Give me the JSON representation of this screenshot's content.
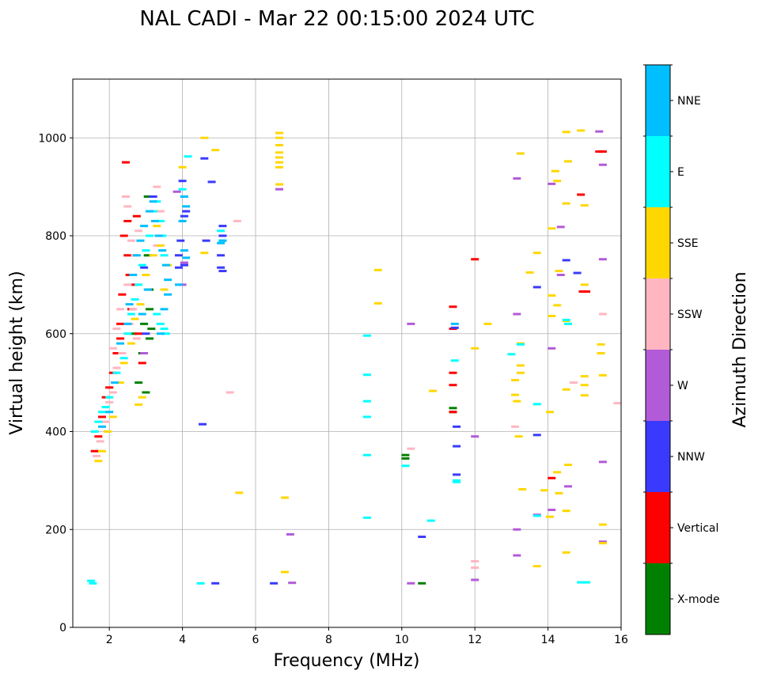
{
  "chart_data": {
    "type": "scatter",
    "title": "NAL CADI - Mar 22 00:15:00 2024 UTC",
    "xlabel": "Frequency (MHz)",
    "ylabel": "Virtual height (km)",
    "xlim": [
      1,
      16
    ],
    "ylim": [
      0,
      1120
    ],
    "xticks": [
      2,
      4,
      6,
      8,
      10,
      12,
      14,
      16
    ],
    "yticks": [
      0,
      200,
      400,
      600,
      800,
      1000
    ],
    "grid": true,
    "colorbar": {
      "label": "Azimuth Direction",
      "categories": [
        {
          "name": "X-mode",
          "color": "#008000"
        },
        {
          "name": "Vertical",
          "color": "#ff0000"
        },
        {
          "name": "NNW",
          "color": "#3a3aff"
        },
        {
          "name": "W",
          "color": "#b25bd8"
        },
        {
          "name": "SSW",
          "color": "#ffb6c1"
        },
        {
          "name": "SSE",
          "color": "#ffd700"
        },
        {
          "name": "E",
          "color": "#00ffff"
        },
        {
          "name": "NNE",
          "color": "#00bfff"
        }
      ]
    },
    "series": [
      {
        "name": "X-mode",
        "points": [
          [
            10.1,
            345
          ],
          [
            10.1,
            352
          ],
          [
            10.55,
            90
          ],
          [
            11.4,
            440
          ],
          [
            11.4,
            448
          ],
          [
            3.1,
            650
          ],
          [
            3.1,
            690
          ],
          [
            3.1,
            590
          ],
          [
            3.05,
            760
          ],
          [
            2.9,
            560
          ],
          [
            2.95,
            620
          ],
          [
            3.05,
            880
          ],
          [
            3.15,
            610
          ],
          [
            3.0,
            480
          ],
          [
            2.65,
            600
          ],
          [
            2.8,
            500
          ]
        ]
      },
      {
        "name": "Vertical",
        "points": [
          [
            2.45,
            950
          ],
          [
            2.4,
            800
          ],
          [
            2.5,
            760
          ],
          [
            2.55,
            720
          ],
          [
            2.35,
            680
          ],
          [
            2.3,
            620
          ],
          [
            2.2,
            560
          ],
          [
            2.1,
            520
          ],
          [
            2.0,
            490
          ],
          [
            1.9,
            470
          ],
          [
            1.8,
            430
          ],
          [
            1.7,
            390
          ],
          [
            1.6,
            360
          ],
          [
            2.6,
            650
          ],
          [
            2.7,
            700
          ],
          [
            2.75,
            840
          ],
          [
            2.8,
            600
          ],
          [
            11.4,
            655
          ],
          [
            11.4,
            610
          ],
          [
            11.4,
            520
          ],
          [
            11.4,
            495
          ],
          [
            11.4,
            440
          ],
          [
            12.0,
            752
          ],
          [
            14.9,
            884
          ],
          [
            15.4,
            972
          ],
          [
            15.5,
            972
          ],
          [
            14.95,
            686
          ],
          [
            15.05,
            686
          ],
          [
            14.1,
            305
          ],
          [
            2.3,
            590
          ],
          [
            2.5,
            830
          ],
          [
            2.9,
            540
          ]
        ]
      },
      {
        "name": "NNW",
        "points": [
          [
            4.0,
            912
          ],
          [
            4.05,
            880
          ],
          [
            4.1,
            850
          ],
          [
            4.05,
            840
          ],
          [
            3.95,
            790
          ],
          [
            3.9,
            760
          ],
          [
            3.9,
            735
          ],
          [
            4.05,
            740
          ],
          [
            4.6,
            958
          ],
          [
            4.65,
            790
          ],
          [
            4.55,
            415
          ],
          [
            5.1,
            820
          ],
          [
            5.1,
            800
          ],
          [
            5.05,
            760
          ],
          [
            5.05,
            735
          ],
          [
            5.1,
            728
          ],
          [
            4.8,
            910
          ],
          [
            6.5,
            90
          ],
          [
            4.9,
            90
          ],
          [
            10.55,
            185
          ],
          [
            11.45,
            612
          ],
          [
            11.5,
            410
          ],
          [
            11.5,
            370
          ],
          [
            11.5,
            312
          ],
          [
            13.7,
            695
          ],
          [
            13.7,
            393
          ],
          [
            14.5,
            750
          ],
          [
            14.8,
            724
          ],
          [
            3.2,
            880
          ],
          [
            3.0,
            600
          ],
          [
            2.95,
            735
          ]
        ]
      },
      {
        "name": "W",
        "points": [
          [
            6.65,
            895
          ],
          [
            6.95,
            190
          ],
          [
            7.0,
            91
          ],
          [
            10.25,
            620
          ],
          [
            10.25,
            90
          ],
          [
            12.0,
            390
          ],
          [
            12.0,
            97
          ],
          [
            13.15,
            917
          ],
          [
            13.15,
            640
          ],
          [
            13.15,
            200
          ],
          [
            13.15,
            147
          ],
          [
            14.1,
            906
          ],
          [
            14.1,
            570
          ],
          [
            14.35,
            818
          ],
          [
            14.35,
            720
          ],
          [
            14.55,
            288
          ],
          [
            14.1,
            240
          ],
          [
            15.4,
            1013
          ],
          [
            15.5,
            945
          ],
          [
            15.5,
            752
          ],
          [
            15.5,
            338
          ],
          [
            15.5,
            175
          ],
          [
            13.7,
            230
          ],
          [
            4.0,
            700
          ],
          [
            4.05,
            745
          ],
          [
            3.85,
            890
          ],
          [
            2.95,
            560
          ]
        ]
      },
      {
        "name": "SSW",
        "points": [
          [
            2.45,
            880
          ],
          [
            2.5,
            860
          ],
          [
            2.6,
            790
          ],
          [
            2.7,
            760
          ],
          [
            2.5,
            700
          ],
          [
            2.3,
            650
          ],
          [
            2.2,
            610
          ],
          [
            2.1,
            570
          ],
          [
            2.2,
            530
          ],
          [
            2.1,
            480
          ],
          [
            2.0,
            460
          ],
          [
            1.9,
            420
          ],
          [
            1.75,
            380
          ],
          [
            1.65,
            350
          ],
          [
            2.8,
            810
          ],
          [
            3.3,
            900
          ],
          [
            3.4,
            850
          ],
          [
            3.3,
            780
          ],
          [
            2.65,
            650
          ],
          [
            2.75,
            590
          ],
          [
            5.5,
            830
          ],
          [
            5.3,
            480
          ],
          [
            10.25,
            365
          ],
          [
            12.0,
            135
          ],
          [
            12.0,
            122
          ],
          [
            13.1,
            410
          ],
          [
            15.9,
            458
          ],
          [
            15.5,
            640
          ],
          [
            14.7,
            500
          ],
          [
            2.35,
            560
          ],
          [
            2.55,
            620
          ]
        ]
      },
      {
        "name": "SSE",
        "points": [
          [
            6.65,
            1010
          ],
          [
            6.65,
            1000
          ],
          [
            6.65,
            985
          ],
          [
            6.65,
            970
          ],
          [
            6.65,
            960
          ],
          [
            6.65,
            950
          ],
          [
            6.65,
            940
          ],
          [
            6.65,
            905
          ],
          [
            4.0,
            940
          ],
          [
            4.6,
            1000
          ],
          [
            4.9,
            975
          ],
          [
            4.6,
            765
          ],
          [
            5.55,
            275
          ],
          [
            6.8,
            265
          ],
          [
            6.8,
            113
          ],
          [
            9.35,
            730
          ],
          [
            9.35,
            662
          ],
          [
            10.85,
            483
          ],
          [
            12.0,
            570
          ],
          [
            12.35,
            620
          ],
          [
            13.25,
            968
          ],
          [
            13.25,
            580
          ],
          [
            13.25,
            535
          ],
          [
            13.25,
            520
          ],
          [
            13.1,
            505
          ],
          [
            13.1,
            475
          ],
          [
            13.15,
            462
          ],
          [
            13.2,
            390
          ],
          [
            13.3,
            282
          ],
          [
            13.7,
            765
          ],
          [
            13.5,
            725
          ],
          [
            13.7,
            125
          ],
          [
            13.9,
            280
          ],
          [
            14.1,
            815
          ],
          [
            14.1,
            678
          ],
          [
            14.1,
            636
          ],
          [
            14.05,
            440
          ],
          [
            14.05,
            226
          ],
          [
            14.2,
            932
          ],
          [
            14.25,
            912
          ],
          [
            14.3,
            728
          ],
          [
            14.25,
            658
          ],
          [
            14.25,
            317
          ],
          [
            14.3,
            274
          ],
          [
            14.5,
            1012
          ],
          [
            14.55,
            952
          ],
          [
            14.5,
            866
          ],
          [
            14.5,
            626
          ],
          [
            14.5,
            486
          ],
          [
            14.55,
            332
          ],
          [
            14.5,
            238
          ],
          [
            14.5,
            153
          ],
          [
            14.9,
            1015
          ],
          [
            15.0,
            862
          ],
          [
            15.0,
            700
          ],
          [
            15.0,
            513
          ],
          [
            15.0,
            495
          ],
          [
            15.0,
            474
          ],
          [
            15.45,
            578
          ],
          [
            15.45,
            560
          ],
          [
            15.5,
            515
          ],
          [
            15.5,
            210
          ],
          [
            15.5,
            172
          ],
          [
            1.7,
            340
          ],
          [
            1.8,
            360
          ],
          [
            1.95,
            400
          ],
          [
            2.1,
            430
          ],
          [
            2.3,
            500
          ],
          [
            2.4,
            540
          ],
          [
            2.6,
            580
          ],
          [
            2.7,
            630
          ],
          [
            2.85,
            660
          ],
          [
            3.0,
            720
          ],
          [
            3.2,
            760
          ],
          [
            3.3,
            820
          ],
          [
            3.4,
            780
          ],
          [
            2.9,
            470
          ],
          [
            2.8,
            455
          ],
          [
            3.5,
            690
          ],
          [
            3.6,
            740
          ]
        ]
      },
      {
        "name": "E",
        "points": [
          [
            1.5,
            95
          ],
          [
            1.55,
            90
          ],
          [
            4.5,
            90
          ],
          [
            5.1,
            790
          ],
          [
            5.05,
            810
          ],
          [
            9.05,
            596
          ],
          [
            9.05,
            516
          ],
          [
            9.05,
            462
          ],
          [
            9.05,
            430
          ],
          [
            9.05,
            352
          ],
          [
            9.05,
            224
          ],
          [
            10.1,
            330
          ],
          [
            10.8,
            218
          ],
          [
            11.45,
            545
          ],
          [
            11.5,
            300
          ],
          [
            11.5,
            297
          ],
          [
            13.0,
            558
          ],
          [
            13.25,
            578
          ],
          [
            13.7,
            456
          ],
          [
            13.7,
            228
          ],
          [
            14.5,
            628
          ],
          [
            14.55,
            620
          ],
          [
            14.9,
            92
          ],
          [
            15.05,
            92
          ],
          [
            1.6,
            400
          ],
          [
            1.7,
            420
          ],
          [
            1.8,
            440
          ],
          [
            1.9,
            450
          ],
          [
            2.0,
            470
          ],
          [
            2.2,
            520
          ],
          [
            2.4,
            550
          ],
          [
            2.5,
            600
          ],
          [
            2.6,
            640
          ],
          [
            2.7,
            670
          ],
          [
            2.8,
            700
          ],
          [
            2.9,
            740
          ],
          [
            3.0,
            770
          ],
          [
            3.1,
            800
          ],
          [
            3.2,
            850
          ],
          [
            3.3,
            870
          ],
          [
            3.4,
            830
          ],
          [
            3.45,
            800
          ],
          [
            3.5,
            760
          ],
          [
            3.3,
            640
          ],
          [
            3.4,
            620
          ],
          [
            3.5,
            610
          ],
          [
            3.55,
            600
          ],
          [
            4.15,
            962
          ],
          [
            4.0,
            895
          ]
        ]
      },
      {
        "name": "NNE",
        "points": [
          [
            4.05,
            880
          ],
          [
            4.1,
            860
          ],
          [
            4.0,
            830
          ],
          [
            4.05,
            770
          ],
          [
            4.1,
            755
          ],
          [
            3.9,
            700
          ],
          [
            5.1,
            790
          ],
          [
            5.05,
            785
          ],
          [
            1.8,
            410
          ],
          [
            2.0,
            440
          ],
          [
            2.15,
            500
          ],
          [
            2.3,
            580
          ],
          [
            2.5,
            620
          ],
          [
            2.55,
            660
          ],
          [
            2.65,
            720
          ],
          [
            2.75,
            760
          ],
          [
            2.85,
            790
          ],
          [
            2.95,
            820
          ],
          [
            3.1,
            850
          ],
          [
            3.2,
            870
          ],
          [
            3.25,
            830
          ],
          [
            3.35,
            800
          ],
          [
            3.45,
            770
          ],
          [
            3.55,
            740
          ],
          [
            3.6,
            710
          ],
          [
            3.6,
            680
          ],
          [
            3.5,
            650
          ],
          [
            3.4,
            600
          ],
          [
            3.05,
            690
          ],
          [
            2.9,
            640
          ],
          [
            11.45,
            620
          ]
        ]
      }
    ]
  }
}
